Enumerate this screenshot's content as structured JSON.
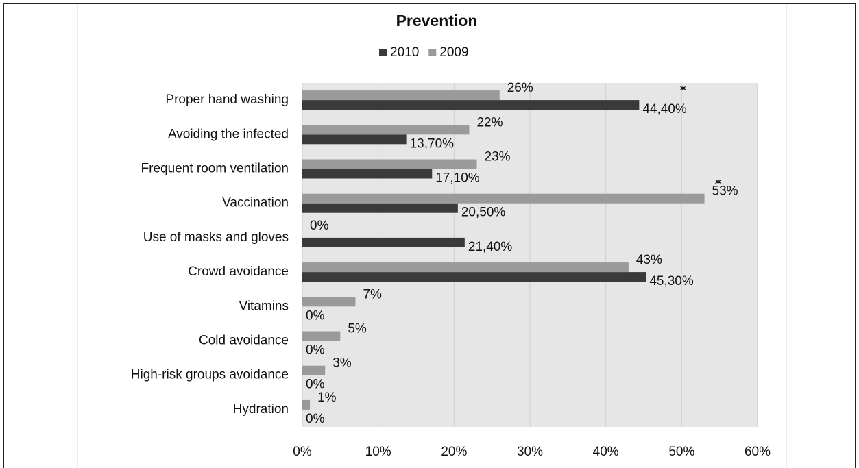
{
  "chart_data": {
    "type": "hbar",
    "title": "Prevention",
    "categories": [
      "Proper hand washing",
      "Avoiding the infected",
      "Frequent room ventilation",
      "Vaccination",
      "Use of masks and gloves",
      "Crowd avoidance",
      "Vitamins",
      "Cold avoidance",
      "High-risk groups avoidance",
      "Hydration"
    ],
    "series": [
      {
        "name": "2010",
        "color": "#3a3a3a",
        "values": [
          44.4,
          13.7,
          17.1,
          20.5,
          21.4,
          45.3,
          0,
          0,
          0,
          0
        ],
        "value_labels": [
          "44,40%",
          "13,70%",
          "17,10%",
          "20,50%",
          "21,40%",
          "45,30%",
          "0%",
          "0%",
          "0%",
          "0%"
        ]
      },
      {
        "name": "2009",
        "color": "#9a9a9a",
        "values": [
          26,
          22,
          23,
          53,
          0,
          43,
          7,
          5,
          3,
          1
        ],
        "value_labels": [
          "26%",
          "22%",
          "23%",
          "53%",
          "0%",
          "43%",
          "7%",
          "5%",
          "3%",
          "1%"
        ]
      }
    ],
    "annotations": [
      {
        "text": "✶",
        "series": 0,
        "index": 0
      },
      {
        "text": "✶",
        "series": 1,
        "index": 3
      }
    ],
    "xlim": [
      0,
      60
    ],
    "xticks": [
      {
        "value": 0,
        "label": "0%"
      },
      {
        "value": 10,
        "label": "10%"
      },
      {
        "value": 20,
        "label": "20%"
      },
      {
        "value": 30,
        "label": "30%"
      },
      {
        "value": 40,
        "label": "40%"
      },
      {
        "value": 50,
        "label": "50%"
      },
      {
        "value": 60,
        "label": "60%"
      }
    ],
    "grid": true,
    "legend": "top"
  }
}
